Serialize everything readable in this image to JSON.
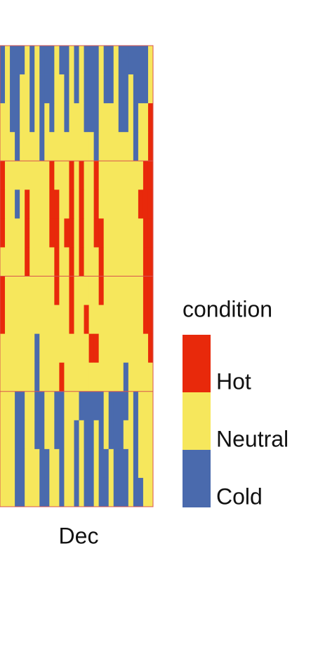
{
  "chart_data": {
    "type": "heatmap",
    "x_label": "Dec",
    "legend_title": "condition",
    "levels": [
      {
        "name": "Hot",
        "color": "#e8290b"
      },
      {
        "name": "Neutral",
        "color": "#f6e75c"
      },
      {
        "name": "Cold",
        "color": "#4a6aad"
      }
    ],
    "rows": [
      [
        "Cold",
        "Neutral",
        "Cold",
        "Cold",
        "Cold",
        "Neutral",
        "Cold",
        "Neutral",
        "Cold",
        "Cold",
        "Cold",
        "Neutral",
        "Cold",
        "Cold",
        "Neutral",
        "Cold",
        "Neutral",
        "Cold",
        "Cold",
        "Cold",
        "Neutral",
        "Cold",
        "Cold",
        "Neutral",
        "Cold",
        "Cold",
        "Cold",
        "Cold",
        "Cold",
        "Cold",
        "Neutral"
      ],
      [
        "Cold",
        "Neutral",
        "Cold",
        "Cold",
        "Neutral",
        "Neutral",
        "Cold",
        "Neutral",
        "Cold",
        "Cold",
        "Cold",
        "Neutral",
        "Neutral",
        "Cold",
        "Neutral",
        "Cold",
        "Neutral",
        "Cold",
        "Cold",
        "Cold",
        "Neutral",
        "Cold",
        "Cold",
        "Neutral",
        "Cold",
        "Cold",
        "Neutral",
        "Cold",
        "Cold",
        "Cold",
        "Neutral"
      ],
      [
        "Neutral",
        "Neutral",
        "Cold",
        "Cold",
        "Neutral",
        "Neutral",
        "Cold",
        "Neutral",
        "Cold",
        "Neutral",
        "Cold",
        "Neutral",
        "Neutral",
        "Cold",
        "Neutral",
        "Neutral",
        "Neutral",
        "Cold",
        "Cold",
        "Cold",
        "Neutral",
        "Neutral",
        "Neutral",
        "Neutral",
        "Cold",
        "Cold",
        "Neutral",
        "Cold",
        "Neutral",
        "Neutral",
        "Hot"
      ],
      [
        "Neutral",
        "Neutral",
        "Neutral",
        "Cold",
        "Neutral",
        "Neutral",
        "Neutral",
        "Neutral",
        "Cold",
        "Neutral",
        "Neutral",
        "Neutral",
        "Neutral",
        "Neutral",
        "Neutral",
        "Neutral",
        "Neutral",
        "Neutral",
        "Neutral",
        "Cold",
        "Neutral",
        "Neutral",
        "Neutral",
        "Neutral",
        "Neutral",
        "Neutral",
        "Neutral",
        "Cold",
        "Neutral",
        "Neutral",
        "Hot"
      ],
      [
        "Hot",
        "Neutral",
        "Neutral",
        "Neutral",
        "Neutral",
        "Neutral",
        "Neutral",
        "Neutral",
        "Neutral",
        "Neutral",
        "Hot",
        "Neutral",
        "Neutral",
        "Neutral",
        "Hot",
        "Neutral",
        "Hot",
        "Neutral",
        "Neutral",
        "Hot",
        "Neutral",
        "Neutral",
        "Neutral",
        "Neutral",
        "Neutral",
        "Neutral",
        "Neutral",
        "Neutral",
        "Neutral",
        "Hot",
        "Hot"
      ],
      [
        "Hot",
        "Neutral",
        "Neutral",
        "Cold",
        "Neutral",
        "Hot",
        "Neutral",
        "Neutral",
        "Neutral",
        "Neutral",
        "Hot",
        "Hot",
        "Neutral",
        "Neutral",
        "Hot",
        "Neutral",
        "Hot",
        "Neutral",
        "Neutral",
        "Hot",
        "Neutral",
        "Neutral",
        "Neutral",
        "Neutral",
        "Neutral",
        "Neutral",
        "Neutral",
        "Neutral",
        "Hot",
        "Hot",
        "Hot"
      ],
      [
        "Hot",
        "Neutral",
        "Neutral",
        "Neutral",
        "Neutral",
        "Hot",
        "Neutral",
        "Neutral",
        "Neutral",
        "Neutral",
        "Hot",
        "Hot",
        "Neutral",
        "Hot",
        "Hot",
        "Neutral",
        "Hot",
        "Neutral",
        "Neutral",
        "Hot",
        "Hot",
        "Neutral",
        "Neutral",
        "Neutral",
        "Neutral",
        "Neutral",
        "Neutral",
        "Neutral",
        "Neutral",
        "Hot",
        "Hot"
      ],
      [
        "Neutral",
        "Neutral",
        "Neutral",
        "Neutral",
        "Neutral",
        "Hot",
        "Neutral",
        "Neutral",
        "Neutral",
        "Neutral",
        "Neutral",
        "Hot",
        "Neutral",
        "Neutral",
        "Hot",
        "Neutral",
        "Hot",
        "Neutral",
        "Neutral",
        "Neutral",
        "Hot",
        "Neutral",
        "Neutral",
        "Neutral",
        "Neutral",
        "Neutral",
        "Neutral",
        "Neutral",
        "Neutral",
        "Hot",
        "Hot"
      ],
      [
        "Hot",
        "Neutral",
        "Neutral",
        "Neutral",
        "Neutral",
        "Neutral",
        "Neutral",
        "Neutral",
        "Neutral",
        "Neutral",
        "Neutral",
        "Hot",
        "Neutral",
        "Neutral",
        "Hot",
        "Neutral",
        "Neutral",
        "Neutral",
        "Neutral",
        "Neutral",
        "Hot",
        "Neutral",
        "Neutral",
        "Neutral",
        "Neutral",
        "Neutral",
        "Neutral",
        "Neutral",
        "Neutral",
        "Hot",
        "Hot"
      ],
      [
        "Hot",
        "Neutral",
        "Neutral",
        "Neutral",
        "Neutral",
        "Neutral",
        "Neutral",
        "Neutral",
        "Neutral",
        "Neutral",
        "Neutral",
        "Neutral",
        "Neutral",
        "Neutral",
        "Hot",
        "Neutral",
        "Neutral",
        "Hot",
        "Neutral",
        "Neutral",
        "Neutral",
        "Neutral",
        "Neutral",
        "Neutral",
        "Neutral",
        "Neutral",
        "Neutral",
        "Neutral",
        "Neutral",
        "Hot",
        "Hot"
      ],
      [
        "Neutral",
        "Neutral",
        "Neutral",
        "Neutral",
        "Neutral",
        "Neutral",
        "Neutral",
        "Cold",
        "Neutral",
        "Neutral",
        "Neutral",
        "Neutral",
        "Neutral",
        "Neutral",
        "Neutral",
        "Neutral",
        "Neutral",
        "Neutral",
        "Hot",
        "Hot",
        "Neutral",
        "Neutral",
        "Neutral",
        "Neutral",
        "Neutral",
        "Neutral",
        "Neutral",
        "Neutral",
        "Neutral",
        "Neutral",
        "Hot"
      ],
      [
        "Neutral",
        "Neutral",
        "Neutral",
        "Neutral",
        "Neutral",
        "Neutral",
        "Neutral",
        "Cold",
        "Neutral",
        "Neutral",
        "Neutral",
        "Neutral",
        "Hot",
        "Neutral",
        "Neutral",
        "Neutral",
        "Neutral",
        "Neutral",
        "Neutral",
        "Neutral",
        "Neutral",
        "Neutral",
        "Neutral",
        "Neutral",
        "Neutral",
        "Cold",
        "Neutral",
        "Neutral",
        "Neutral",
        "Neutral",
        "Neutral"
      ],
      [
        "Neutral",
        "Neutral",
        "Neutral",
        "Cold",
        "Cold",
        "Neutral",
        "Neutral",
        "Cold",
        "Cold",
        "Neutral",
        "Neutral",
        "Cold",
        "Cold",
        "Neutral",
        "Neutral",
        "Neutral",
        "Cold",
        "Cold",
        "Cold",
        "Cold",
        "Cold",
        "Neutral",
        "Cold",
        "Cold",
        "Cold",
        "Cold",
        "Neutral",
        "Cold",
        "Neutral",
        "Neutral",
        "Neutral"
      ],
      [
        "Neutral",
        "Neutral",
        "Neutral",
        "Cold",
        "Cold",
        "Neutral",
        "Neutral",
        "Cold",
        "Cold",
        "Neutral",
        "Neutral",
        "Cold",
        "Cold",
        "Neutral",
        "Neutral",
        "Cold",
        "Neutral",
        "Cold",
        "Cold",
        "Neutral",
        "Cold",
        "Neutral",
        "Cold",
        "Cold",
        "Cold",
        "Neutral",
        "Neutral",
        "Cold",
        "Neutral",
        "Neutral",
        "Neutral"
      ],
      [
        "Neutral",
        "Neutral",
        "Neutral",
        "Cold",
        "Cold",
        "Neutral",
        "Neutral",
        "Neutral",
        "Cold",
        "Cold",
        "Neutral",
        "Neutral",
        "Cold",
        "Neutral",
        "Neutral",
        "Cold",
        "Neutral",
        "Cold",
        "Cold",
        "Neutral",
        "Cold",
        "Cold",
        "Neutral",
        "Cold",
        "Cold",
        "Cold",
        "Neutral",
        "Cold",
        "Neutral",
        "Neutral",
        "Neutral"
      ],
      [
        "Neutral",
        "Neutral",
        "Neutral",
        "Cold",
        "Cold",
        "Neutral",
        "Neutral",
        "Neutral",
        "Cold",
        "Cold",
        "Neutral",
        "Neutral",
        "Cold",
        "Neutral",
        "Neutral",
        "Cold",
        "Neutral",
        "Cold",
        "Cold",
        "Neutral",
        "Cold",
        "Cold",
        "Neutral",
        "Cold",
        "Cold",
        "Cold",
        "Neutral",
        "Cold",
        "Cold",
        "Neutral",
        "Neutral"
      ]
    ]
  }
}
